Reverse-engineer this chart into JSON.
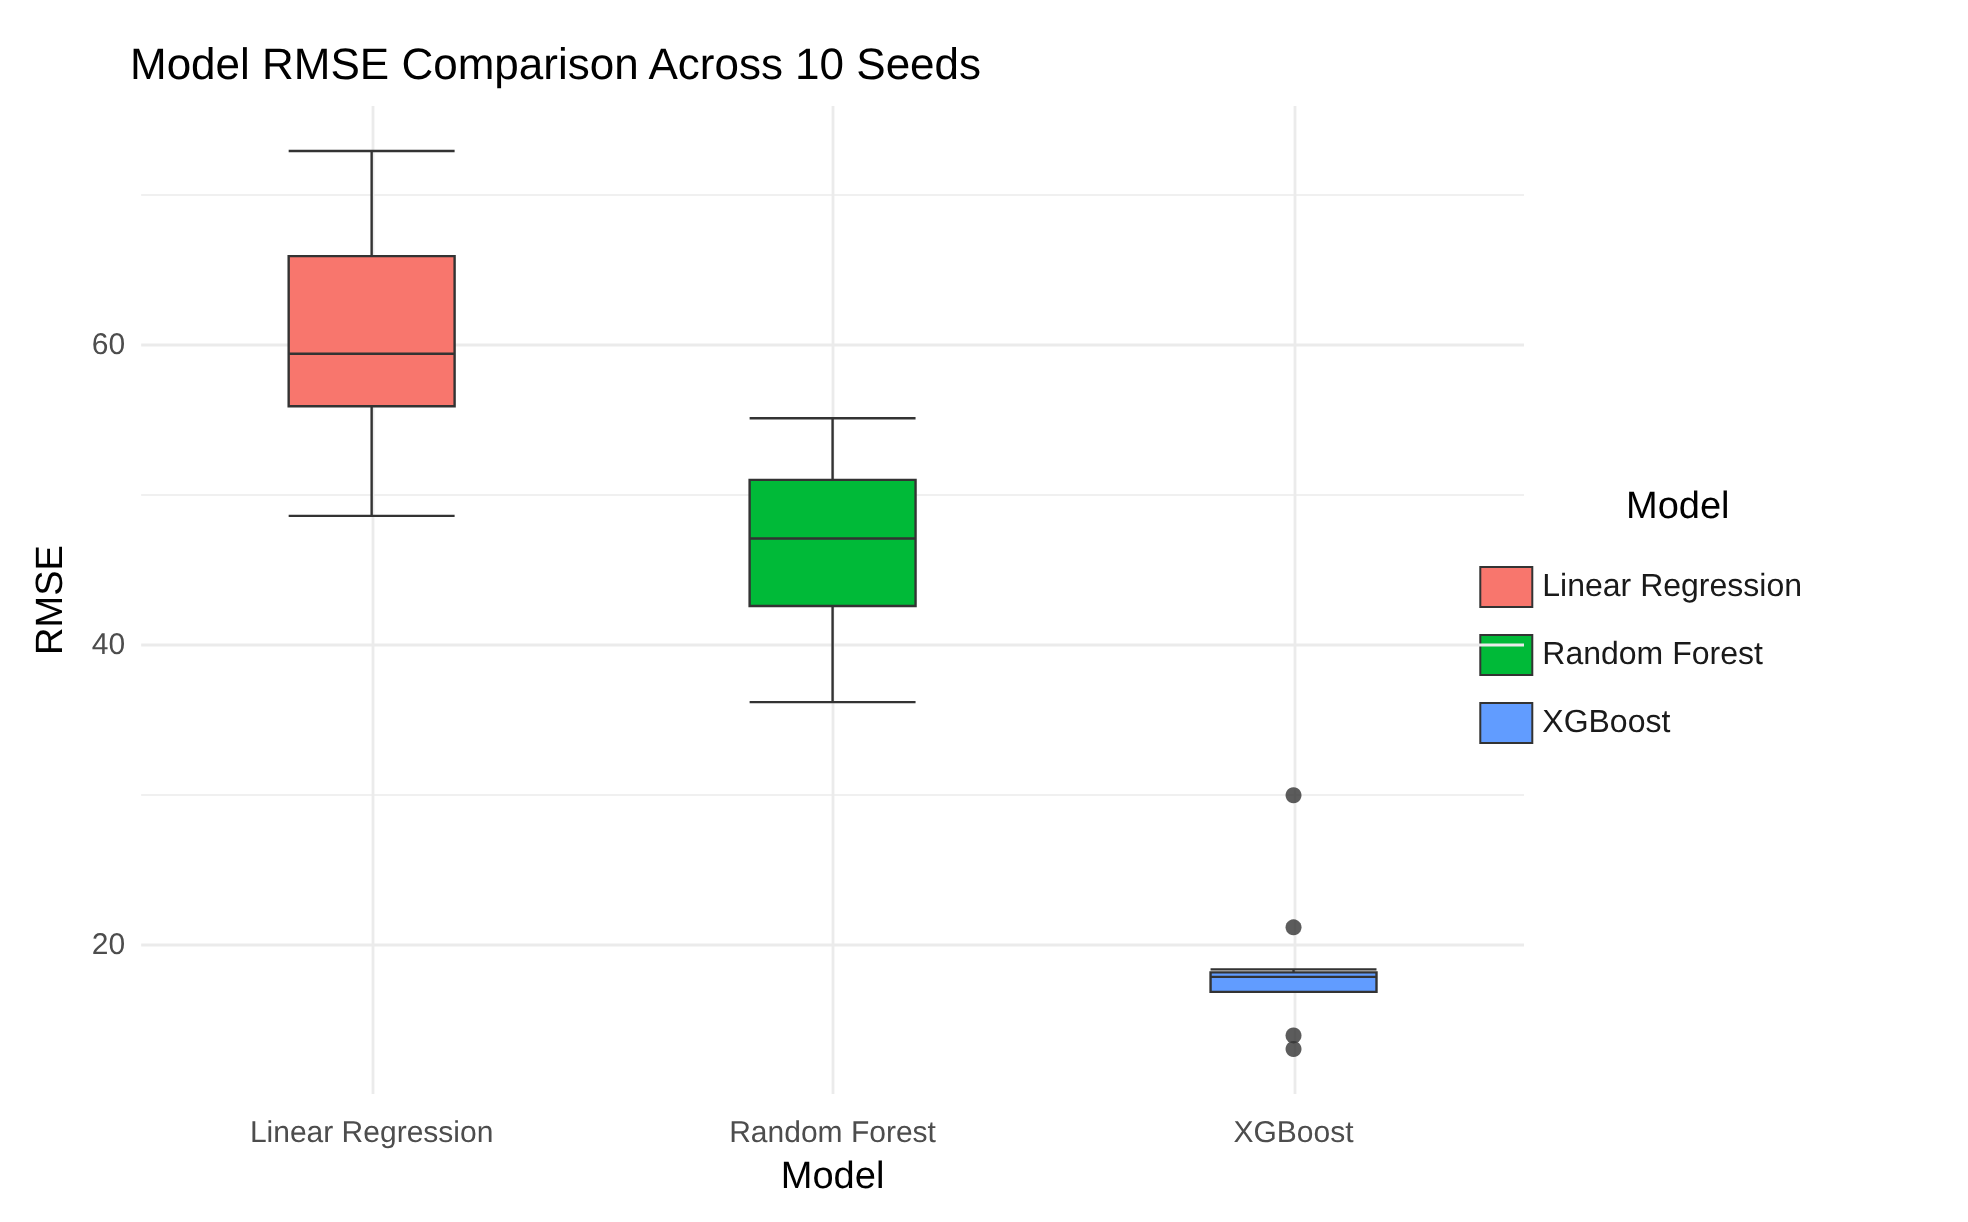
{
  "chart_data": {
    "type": "box",
    "title": "Model RMSE Comparison Across 10 Seeds",
    "xlabel": "Model",
    "ylabel": "RMSE",
    "legend_title": "Model",
    "categories": [
      "Linear Regression",
      "Random Forest",
      "XGBoost"
    ],
    "series": [
      {
        "name": "Linear Regression",
        "color": "#f8766d",
        "boxes": [
          {
            "low": 48.6,
            "q1": 55.9,
            "median": 59.4,
            "q3": 65.9,
            "high": 72.9
          },
          null,
          null
        ]
      },
      {
        "name": "Random Forest",
        "color": "#00ba38",
        "boxes": [
          null,
          {
            "low": 36.2,
            "q1": 42.6,
            "median": 47.1,
            "q3": 51.0,
            "high": 55.1
          },
          null
        ]
      },
      {
        "name": "XGBoost",
        "color": "#619cff",
        "boxes": [
          null,
          null,
          {
            "low": 16.9,
            "q1": 16.9,
            "median": 17.9,
            "q3": 18.2,
            "high": 18.4,
            "outliers": [
              30.0,
              21.2,
              14.0,
              13.1
            ]
          }
        ]
      }
    ],
    "ylim": [
      10.1,
      75.9
    ],
    "yticks": [
      20,
      {
        "value": 30,
        "label": null
      },
      40,
      {
        "value": 50,
        "label": null
      },
      60,
      {
        "value": 70,
        "label": null
      }
    ],
    "grid": true,
    "legend": "right"
  }
}
